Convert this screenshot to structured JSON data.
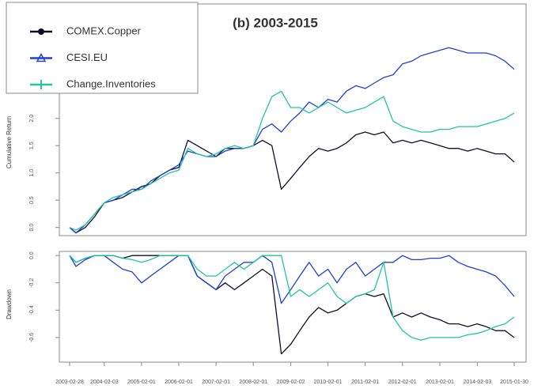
{
  "chart_data": [
    {
      "type": "line",
      "title": "(b) 2003-2015",
      "y_label": "Cumulative Return",
      "x": [
        "2003-02-28",
        "2003-05-01",
        "2003-08-01",
        "2003-11-01",
        "2004-02-01",
        "2004-05-01",
        "2004-08-01",
        "2004-11-01",
        "2005-02-01",
        "2005-05-01",
        "2005-08-01",
        "2005-11-01",
        "2006-02-01",
        "2006-05-01",
        "2006-08-01",
        "2006-11-01",
        "2007-02-01",
        "2007-05-01",
        "2007-08-01",
        "2007-11-01",
        "2008-02-01",
        "2008-05-01",
        "2008-08-01",
        "2008-11-01",
        "2009-02-01",
        "2009-05-01",
        "2009-08-01",
        "2009-11-01",
        "2010-02-01",
        "2010-05-01",
        "2010-08-01",
        "2010-11-01",
        "2011-02-01",
        "2011-05-01",
        "2011-08-01",
        "2011-11-01",
        "2012-02-01",
        "2012-05-01",
        "2012-08-01",
        "2012-11-01",
        "2013-02-01",
        "2013-05-01",
        "2013-08-01",
        "2013-11-01",
        "2014-02-01",
        "2014-05-01",
        "2014-08-01",
        "2014-11-01",
        "2015-01-30"
      ],
      "xlim": [
        "2003-02-28",
        "2015-01-30"
      ],
      "ylim": [
        -0.15,
        4.1
      ],
      "yticks": [
        {
          "value": 0,
          "label": "0.0"
        },
        {
          "value": 0.5,
          "label": "0.5"
        },
        {
          "value": 1,
          "label": "1.0"
        },
        {
          "value": 1.5,
          "label": "1.5"
        },
        {
          "value": 2,
          "label": "2.0"
        }
      ],
      "legend": "upper left",
      "series": [
        {
          "name": "COMEX.Copper",
          "color": "#0d0d2b",
          "marker": "circle",
          "values": [
            0.0,
            -0.1,
            0.0,
            0.2,
            0.45,
            0.5,
            0.55,
            0.65,
            0.75,
            0.8,
            0.95,
            1.05,
            1.1,
            1.6,
            1.5,
            1.4,
            1.3,
            1.45,
            1.45,
            1.45,
            1.5,
            1.6,
            1.5,
            0.7,
            0.9,
            1.1,
            1.3,
            1.45,
            1.4,
            1.45,
            1.55,
            1.7,
            1.75,
            1.7,
            1.75,
            1.55,
            1.6,
            1.55,
            1.6,
            1.55,
            1.5,
            1.45,
            1.45,
            1.4,
            1.45,
            1.4,
            1.35,
            1.35,
            1.2
          ]
        },
        {
          "name": "CESI.EU",
          "color": "#1f3fd6",
          "marker": "triangle",
          "values": [
            0.0,
            -0.1,
            0.05,
            0.25,
            0.45,
            0.5,
            0.6,
            0.7,
            0.7,
            0.85,
            0.95,
            1.05,
            1.15,
            1.4,
            1.35,
            1.3,
            1.3,
            1.4,
            1.45,
            1.45,
            1.5,
            1.8,
            1.9,
            1.75,
            1.95,
            2.1,
            2.3,
            2.2,
            2.35,
            2.3,
            2.5,
            2.6,
            2.55,
            2.65,
            2.75,
            2.8,
            3.0,
            3.05,
            3.15,
            3.2,
            3.25,
            3.3,
            3.25,
            3.2,
            3.2,
            3.2,
            3.15,
            3.05,
            2.9
          ]
        },
        {
          "name": "Change.Inventories",
          "color": "#22c4a2",
          "marker": "plus",
          "values": [
            0.0,
            -0.05,
            0.05,
            0.25,
            0.45,
            0.55,
            0.6,
            0.65,
            0.7,
            0.8,
            0.9,
            1.0,
            1.05,
            1.45,
            1.35,
            1.3,
            1.35,
            1.45,
            1.5,
            1.45,
            1.5,
            2.0,
            2.4,
            2.5,
            2.2,
            2.2,
            2.1,
            2.2,
            2.3,
            2.2,
            2.1,
            2.15,
            2.2,
            2.3,
            2.4,
            1.95,
            1.85,
            1.8,
            1.75,
            1.75,
            1.8,
            1.8,
            1.85,
            1.85,
            1.85,
            1.9,
            1.95,
            2.0,
            2.1
          ]
        }
      ]
    },
    {
      "type": "line",
      "y_label": "Drawdown",
      "x": [
        "2003-02-28",
        "2003-05-01",
        "2003-08-01",
        "2003-11-01",
        "2004-02-01",
        "2004-05-01",
        "2004-08-01",
        "2004-11-01",
        "2005-02-01",
        "2005-05-01",
        "2005-08-01",
        "2005-11-01",
        "2006-02-01",
        "2006-05-01",
        "2006-08-01",
        "2006-11-01",
        "2007-02-01",
        "2007-05-01",
        "2007-08-01",
        "2007-11-01",
        "2008-02-01",
        "2008-05-01",
        "2008-08-01",
        "2008-11-01",
        "2009-02-01",
        "2009-05-01",
        "2009-08-01",
        "2009-11-01",
        "2010-02-01",
        "2010-05-01",
        "2010-08-01",
        "2010-11-01",
        "2011-02-01",
        "2011-05-01",
        "2011-08-01",
        "2011-11-01",
        "2012-02-01",
        "2012-05-01",
        "2012-08-01",
        "2012-11-01",
        "2013-02-01",
        "2013-05-01",
        "2013-08-01",
        "2013-11-01",
        "2014-02-01",
        "2014-05-01",
        "2014-08-01",
        "2014-11-01",
        "2015-01-30"
      ],
      "xlim": [
        "2003-02-28",
        "2015-01-30"
      ],
      "xticks": [
        "2003-02-28",
        "2004-02-03",
        "2005-02-01",
        "2006-02-01",
        "2007-02-01",
        "2008-02-01",
        "2009-02-02",
        "2010-02-01",
        "2011-02-01",
        "2012-02-01",
        "2013-02-01",
        "2014-02-03",
        "2015-01-30"
      ],
      "ylim": [
        -0.78,
        0.03
      ],
      "yticks": [
        {
          "value": 0,
          "label": "0.0"
        },
        -0.2,
        -0.4,
        -0.6
      ],
      "series": [
        {
          "name": "COMEX.Copper",
          "color": "#0d0d2b",
          "values": [
            0,
            -0.05,
            -0.02,
            0,
            0,
            0,
            -0.02,
            0,
            0,
            0,
            0,
            0,
            0,
            0,
            -0.15,
            -0.2,
            -0.25,
            -0.2,
            -0.25,
            -0.2,
            -0.15,
            -0.1,
            -0.15,
            -0.72,
            -0.65,
            -0.55,
            -0.45,
            -0.38,
            -0.42,
            -0.4,
            -0.35,
            -0.3,
            -0.28,
            -0.3,
            -0.28,
            -0.45,
            -0.42,
            -0.45,
            -0.42,
            -0.45,
            -0.47,
            -0.5,
            -0.5,
            -0.52,
            -0.5,
            -0.52,
            -0.55,
            -0.55,
            -0.6
          ]
        },
        {
          "name": "CESI.EU",
          "color": "#1f3fd6",
          "values": [
            0,
            -0.08,
            -0.03,
            0,
            0,
            -0.05,
            -0.1,
            -0.12,
            -0.2,
            -0.15,
            -0.1,
            -0.05,
            0,
            0,
            -0.15,
            -0.2,
            -0.25,
            -0.15,
            -0.1,
            -0.05,
            -0.05,
            0,
            -0.05,
            -0.35,
            -0.25,
            -0.15,
            -0.05,
            -0.15,
            -0.1,
            -0.2,
            -0.1,
            -0.05,
            -0.15,
            -0.1,
            -0.05,
            -0.05,
            0,
            -0.03,
            -0.03,
            -0.02,
            -0.02,
            0,
            -0.05,
            -0.08,
            -0.1,
            -0.12,
            -0.15,
            -0.22,
            -0.3
          ]
        },
        {
          "name": "Change.Inventories",
          "color": "#22c4a2",
          "values": [
            0,
            -0.05,
            -0.02,
            0,
            0,
            0,
            -0.02,
            -0.03,
            -0.05,
            -0.03,
            0,
            0,
            0,
            0,
            -0.1,
            -0.15,
            -0.15,
            -0.1,
            -0.05,
            -0.1,
            -0.05,
            0,
            0,
            0,
            -0.3,
            -0.25,
            -0.3,
            -0.25,
            -0.2,
            -0.3,
            -0.35,
            -0.3,
            -0.28,
            -0.25,
            -0.05,
            -0.45,
            -0.55,
            -0.6,
            -0.62,
            -0.6,
            -0.6,
            -0.6,
            -0.6,
            -0.58,
            -0.57,
            -0.55,
            -0.52,
            -0.5,
            -0.45
          ]
        }
      ]
    }
  ]
}
